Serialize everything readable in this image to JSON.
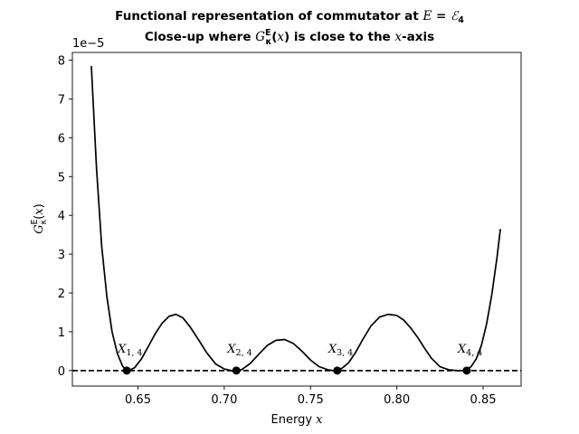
{
  "chart_data": {
    "type": "line",
    "title_line1": "Functional representation of commutator at E = ℰ₄",
    "title_line2": "Close-up where G_κ^E(x) is close to the x-axis",
    "xlabel": "Energy x",
    "ylabel": "G_κ^E(x)",
    "offset_text": "1e−5",
    "xlim": [
      0.612,
      0.872
    ],
    "ylim": [
      -0.4,
      8.2
    ],
    "y_scale_factor": 1e-05,
    "x_ticks": [
      0.65,
      0.7,
      0.75,
      0.8,
      0.85
    ],
    "x_tick_labels": [
      "0.65",
      "0.70",
      "0.75",
      "0.80",
      "0.85"
    ],
    "y_ticks": [
      0,
      1,
      2,
      3,
      4,
      5,
      6,
      7,
      8
    ],
    "y_tick_labels": [
      "0",
      "1",
      "2",
      "3",
      "4",
      "5",
      "6",
      "7",
      "8"
    ],
    "grid": false,
    "series": [
      {
        "style": "solid",
        "color": "#000000",
        "x": [
          0.623,
          0.626,
          0.629,
          0.632,
          0.635,
          0.638,
          0.641,
          0.643,
          0.645,
          0.648,
          0.652,
          0.656,
          0.66,
          0.664,
          0.668,
          0.672,
          0.676,
          0.68,
          0.685,
          0.69,
          0.695,
          0.7,
          0.704,
          0.707,
          0.71,
          0.715,
          0.72,
          0.725,
          0.73,
          0.735,
          0.74,
          0.745,
          0.75,
          0.755,
          0.76,
          0.763,
          0.765,
          0.768,
          0.772,
          0.776,
          0.78,
          0.785,
          0.79,
          0.795,
          0.8,
          0.804,
          0.808,
          0.812,
          0.816,
          0.82,
          0.825,
          0.83,
          0.835,
          0.838,
          0.84,
          0.843,
          0.846,
          0.849,
          0.852,
          0.855,
          0.858,
          0.86
        ],
        "y": [
          7.85,
          5.2,
          3.2,
          1.9,
          1.0,
          0.45,
          0.12,
          0.02,
          0.01,
          0.07,
          0.3,
          0.62,
          0.95,
          1.22,
          1.4,
          1.45,
          1.36,
          1.14,
          0.8,
          0.45,
          0.17,
          0.04,
          0.0,
          0.0,
          0.02,
          0.18,
          0.42,
          0.65,
          0.78,
          0.8,
          0.7,
          0.5,
          0.27,
          0.1,
          0.02,
          0.0,
          0.0,
          0.05,
          0.2,
          0.46,
          0.78,
          1.15,
          1.38,
          1.45,
          1.42,
          1.3,
          1.1,
          0.86,
          0.58,
          0.32,
          0.1,
          0.02,
          0.0,
          0.0,
          0.02,
          0.1,
          0.3,
          0.65,
          1.2,
          1.95,
          2.9,
          3.65
        ]
      },
      {
        "style": "dashed",
        "color": "#000000",
        "x": [
          0.612,
          0.872
        ],
        "y": [
          0,
          0
        ]
      }
    ],
    "points": [
      {
        "label": "X_{1,4}",
        "label_base": "X",
        "label_sub": "1, 4",
        "x": 0.6435,
        "y": 0
      },
      {
        "label": "X_{2,4}",
        "label_base": "X",
        "label_sub": "2, 4",
        "x": 0.707,
        "y": 0
      },
      {
        "label": "X_{3,4}",
        "label_base": "X",
        "label_sub": "3, 4",
        "x": 0.7655,
        "y": 0
      },
      {
        "label": "X_{4,4}",
        "label_base": "X",
        "label_sub": "4, 4",
        "x": 0.8405,
        "y": 0
      }
    ]
  }
}
